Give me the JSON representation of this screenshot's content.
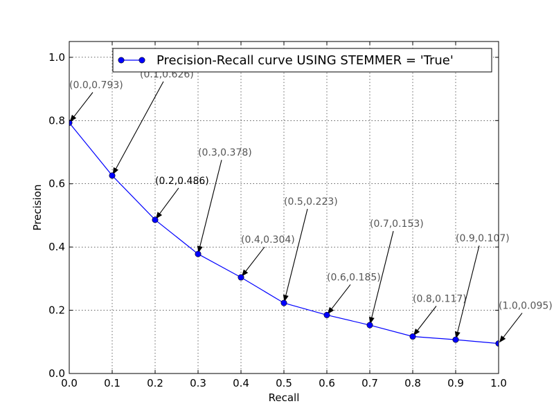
{
  "chart_data": {
    "type": "line",
    "xlabel": "Recall",
    "ylabel": "Precision",
    "xlim": [
      0.0,
      1.0
    ],
    "ylim": [
      0.0,
      1.05
    ],
    "grid": true,
    "legend_placement": "top-right",
    "x_ticks": [
      "0.0",
      "0.1",
      "0.2",
      "0.3",
      "0.4",
      "0.5",
      "0.6",
      "0.7",
      "0.8",
      "0.9",
      "1.0"
    ],
    "y_ticks": [
      "0.0",
      "0.2",
      "0.4",
      "0.6",
      "0.8",
      "1.0"
    ],
    "series": [
      {
        "name": "Precision-Recall curve USING STEMMER = 'True'",
        "color": "#0000ff",
        "x": [
          0.0,
          0.1,
          0.2,
          0.3,
          0.4,
          0.5,
          0.6,
          0.7,
          0.8,
          0.9,
          1.0
        ],
        "y": [
          0.793,
          0.626,
          0.486,
          0.378,
          0.304,
          0.223,
          0.185,
          0.153,
          0.117,
          0.107,
          0.095
        ]
      }
    ],
    "annotations": [
      {
        "text": "(0.0,0.793)",
        "x": 0.0,
        "y": 0.793
      },
      {
        "text": "(0.1,0.626)",
        "x": 0.1,
        "y": 0.626
      },
      {
        "text": "(0.2,0.486)",
        "x": 0.2,
        "y": 0.486
      },
      {
        "text": "(0.3,0.378)",
        "x": 0.3,
        "y": 0.378
      },
      {
        "text": "(0.4,0.304)",
        "x": 0.4,
        "y": 0.304
      },
      {
        "text": "(0.5,0.223)",
        "x": 0.5,
        "y": 0.223
      },
      {
        "text": "(0.6,0.185)",
        "x": 0.6,
        "y": 0.185
      },
      {
        "text": "(0.7,0.153)",
        "x": 0.7,
        "y": 0.153
      },
      {
        "text": "(0.8,0.117)",
        "x": 0.8,
        "y": 0.117
      },
      {
        "text": "(0.9,0.107)",
        "x": 0.9,
        "y": 0.107
      },
      {
        "text": "(1.0,0.095)",
        "x": 1.0,
        "y": 0.095
      }
    ]
  }
}
